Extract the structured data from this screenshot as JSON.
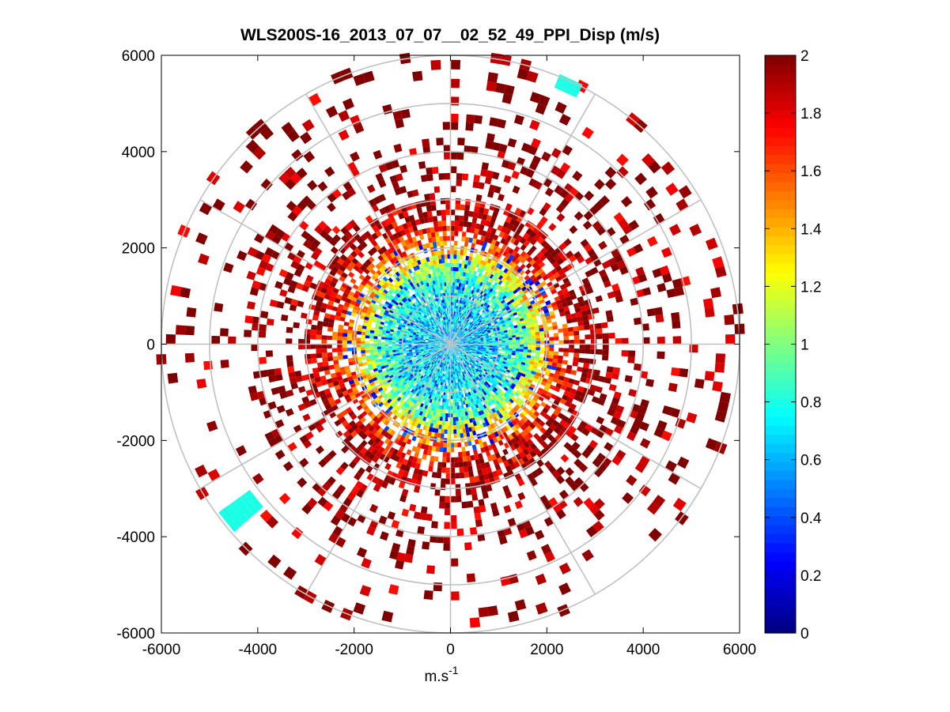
{
  "chart_data": {
    "type": "heatmap",
    "subtype": "polar-ppi-scatter",
    "title": "WLS200S-16_2013_07_07__02_52_49_PPI_Disp (m/s)",
    "xlabel": "m.s",
    "xlabel_superscript": "-1",
    "ylabel": "",
    "xlim": [
      -6000,
      6000
    ],
    "ylim": [
      -6000,
      6000
    ],
    "xticks": [
      -6000,
      -4000,
      -2000,
      0,
      2000,
      4000,
      6000
    ],
    "yticks": [
      6000,
      4000,
      2000,
      0,
      -2000,
      -4000,
      -6000
    ],
    "xtick_labels": [
      "-6000",
      "-4000",
      "-2000",
      "0",
      "2000",
      "4000",
      "6000"
    ],
    "ytick_labels": [
      "6000",
      "4000",
      "2000",
      "0",
      "-2000",
      "-4000",
      "-6000"
    ],
    "polar_grid": {
      "ring_radii": [
        1000,
        2000,
        3000,
        4000,
        5000,
        6000
      ],
      "spoke_angles_deg": [
        0,
        30,
        60,
        90,
        120,
        150,
        180,
        210,
        240,
        270,
        300,
        330
      ],
      "max_radius": 6000
    },
    "colorbar": {
      "colormap": "jet",
      "range": [
        0,
        2
      ],
      "ticks": [
        0,
        0.2,
        0.4,
        0.6,
        0.8,
        1,
        1.2,
        1.4,
        1.6,
        1.8,
        2
      ],
      "tick_labels": [
        "0",
        "0.2",
        "0.4",
        "0.6",
        "0.8",
        "1",
        "1.2",
        "1.4",
        "1.6",
        "1.8",
        "2"
      ]
    },
    "value_profile": {
      "radius_m": [
        0,
        500,
        1000,
        1500,
        2000,
        2500,
        3000,
        4000,
        5000,
        6000
      ],
      "mean_value": [
        0.7,
        0.7,
        0.75,
        0.95,
        1.5,
        1.85,
        1.95,
        2.0,
        2.0,
        2.0
      ]
    },
    "special_bands": [
      {
        "angle_deg_from": 63,
        "angle_deg_to": 68,
        "radius_from": 5750,
        "radius_to": 6050,
        "value": 0.8
      },
      {
        "angle_deg_from": 216,
        "angle_deg_to": 221,
        "radius_from": 5150,
        "radius_to": 5950,
        "value": 0.8
      }
    ],
    "grid": true,
    "legend": ""
  }
}
